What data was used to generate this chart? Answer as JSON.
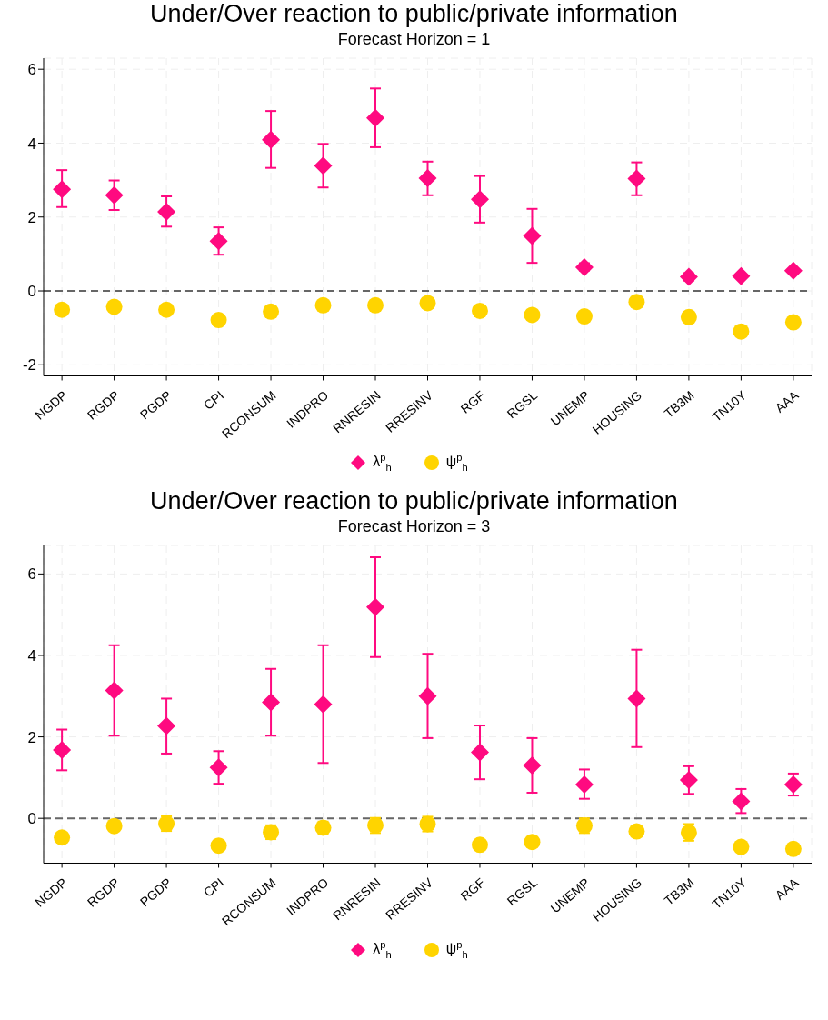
{
  "chart_data": [
    {
      "type": "scatter",
      "title": "Under/Over reaction to public/private information",
      "subtitle": "Forecast Horizon = 1",
      "categories": [
        "NGDP",
        "RGDP",
        "PGDP",
        "CPI",
        "RCONSUM",
        "INDPRO",
        "RNRESIN",
        "RRESINV",
        "RGF",
        "RGSL",
        "UNEMP",
        "HOUSING",
        "TB3M",
        "TN10Y",
        "AAA"
      ],
      "series": [
        {
          "name": "λ$^{p}$$_{h}$",
          "color": "#ff0a80",
          "marker": "diamond",
          "values": [
            2.75,
            2.59,
            2.14,
            1.35,
            4.09,
            3.39,
            4.68,
            3.05,
            2.48,
            1.49,
            0.64,
            3.04,
            0.38,
            0.4,
            0.55
          ],
          "errors": [
            [
              2.27,
              3.27
            ],
            [
              2.19,
              2.99
            ],
            [
              1.74,
              2.56
            ],
            [
              0.98,
              1.72
            ],
            [
              3.33,
              4.87
            ],
            [
              2.8,
              3.98
            ],
            [
              3.89,
              5.48
            ],
            [
              2.59,
              3.5
            ],
            [
              1.85,
              3.11
            ],
            [
              0.76,
              2.22
            ],
            [
              0.55,
              0.75
            ],
            [
              2.59,
              3.48
            ],
            [
              0.28,
              0.48
            ],
            null,
            null
          ]
        },
        {
          "name": "ψ$^{p}$$_{h}$",
          "color": "#ffd400",
          "marker": "circle",
          "values": [
            -0.51,
            -0.43,
            -0.51,
            -0.79,
            -0.56,
            -0.39,
            -0.39,
            -0.33,
            -0.54,
            -0.65,
            -0.69,
            -0.3,
            -0.71,
            -1.1,
            -0.85
          ]
        }
      ],
      "ylim": [
        -2.3,
        6.3
      ],
      "yticks": [
        -2,
        0,
        2,
        4,
        6
      ],
      "grid": true,
      "legend": "bottom",
      "ref_lines": [
        {
          "axis": "y",
          "value": 0,
          "color": "#666666",
          "line_style": "dashed"
        }
      ]
    },
    {
      "type": "scatter",
      "title": "Under/Over reaction to public/private information",
      "subtitle": "Forecast Horizon = 3",
      "categories": [
        "NGDP",
        "RGDP",
        "PGDP",
        "CPI",
        "RCONSUM",
        "INDPRO",
        "RNRESIN",
        "RRESINV",
        "RGF",
        "RGSL",
        "UNEMP",
        "HOUSING",
        "TB3M",
        "TN10Y",
        "AAA"
      ],
      "series": [
        {
          "name": "λ$^{p}$$_{h}$",
          "color": "#ff0a80",
          "marker": "diamond",
          "values": [
            1.68,
            3.14,
            2.27,
            1.25,
            2.85,
            2.8,
            5.19,
            3.0,
            1.62,
            1.3,
            0.83,
            2.94,
            0.94,
            0.42,
            0.83
          ],
          "errors": [
            [
              1.18,
              2.18
            ],
            [
              2.03,
              4.25
            ],
            [
              1.59,
              2.94
            ],
            [
              0.85,
              1.65
            ],
            [
              2.03,
              3.67
            ],
            [
              1.36,
              4.25
            ],
            [
              3.96,
              6.41
            ],
            [
              1.97,
              4.04
            ],
            [
              0.96,
              2.28
            ],
            [
              0.63,
              1.97
            ],
            [
              0.48,
              1.2
            ],
            [
              1.75,
              4.14
            ],
            [
              0.6,
              1.28
            ],
            [
              0.13,
              0.72
            ],
            [
              0.56,
              1.1
            ]
          ]
        },
        {
          "name": "ψ$^{p}$$_{h}$",
          "color": "#ffd400",
          "marker": "circle",
          "values": [
            -0.47,
            -0.19,
            -0.13,
            -0.67,
            -0.34,
            -0.23,
            -0.17,
            -0.14,
            -0.65,
            -0.58,
            -0.18,
            -0.32,
            -0.35,
            -0.7,
            -0.75
          ],
          "errors": [
            null,
            null,
            [
              -0.31,
              0.05
            ],
            null,
            [
              -0.51,
              -0.17
            ],
            [
              -0.39,
              -0.08
            ],
            [
              -0.36,
              0.01
            ],
            [
              -0.32,
              0.04
            ],
            null,
            null,
            [
              -0.36,
              0
            ],
            null,
            [
              -0.55,
              -0.14
            ],
            null,
            null
          ]
        }
      ],
      "ylim": [
        -1.1,
        6.7
      ],
      "yticks": [
        0,
        2,
        4,
        6
      ],
      "grid": true,
      "legend": "bottom",
      "ref_lines": [
        {
          "axis": "y",
          "value": 0,
          "color": "#666666",
          "line_style": "dashed"
        }
      ]
    }
  ]
}
